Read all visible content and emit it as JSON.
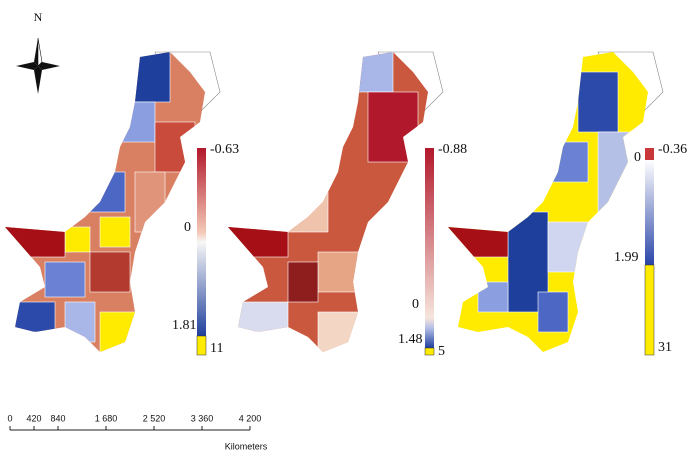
{
  "compass": {
    "label": "N"
  },
  "maps": [
    {
      "legend": {
        "top": "-0.63",
        "zero": "0",
        "low": "1.81",
        "bottom": "11"
      }
    },
    {
      "legend": {
        "top": "-0.88",
        "zero": "0",
        "low": "1.48",
        "bottom": "5"
      }
    },
    {
      "legend": {
        "top": "-0.36",
        "zero": "0",
        "low": "1.99",
        "bottom": "31"
      }
    }
  ],
  "scale_bar": {
    "ticks": [
      "0",
      "420",
      "840",
      "1 680",
      "2 520",
      "3 360",
      "4 200"
    ],
    "unit": "Kilometers"
  }
}
